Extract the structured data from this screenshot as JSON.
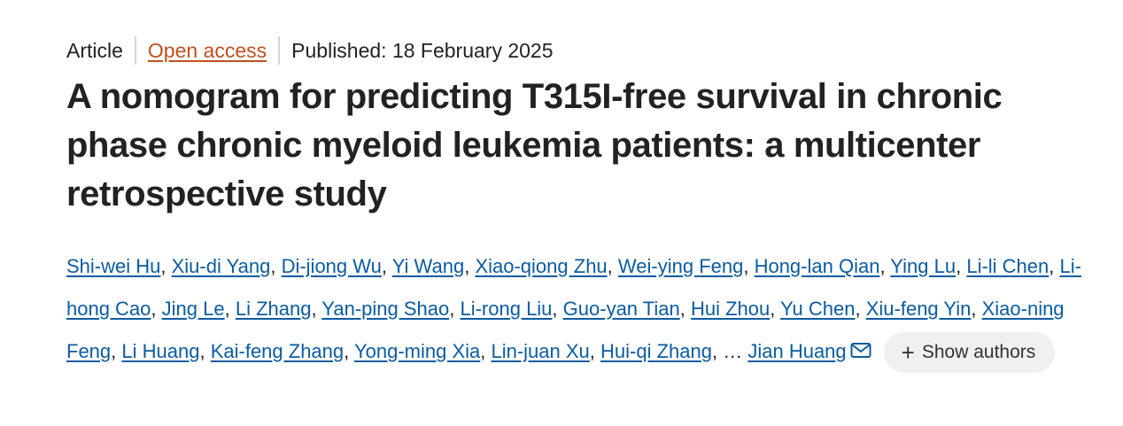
{
  "meta": {
    "type": "Article",
    "access": "Open access",
    "published": "Published: 18 February 2025"
  },
  "title": "A nomogram for predicting T315I-free survival in chronic phase chronic myeloid leukemia patients: a multicenter retrospective study",
  "authors": [
    "Shi-wei Hu",
    "Xiu-di Yang",
    "Di-jiong Wu",
    "Yi Wang",
    "Xiao-qiong Zhu",
    "Wei-ying Feng",
    "Hong-lan Qian",
    "Ying Lu",
    "Li-li Chen",
    "Li-hong Cao",
    "Jing Le",
    "Li Zhang",
    "Yan-ping Shao",
    "Li-rong Liu",
    "Guo-yan Tian",
    "Hui Zhou",
    "Yu Chen",
    "Xiu-feng Yin",
    "Xiao-ning Feng",
    "Li Huang",
    "Kai-feng Zhang",
    "Yong-ming Xia",
    "Lin-juan Xu",
    "Hui-qi Zhang"
  ],
  "ellipsis": "…",
  "corresponding_author": "Jian Huang",
  "show_authors_label": "Show authors",
  "icons": {
    "mail": "mail-icon",
    "plus": "plus-icon"
  },
  "colors": {
    "open_access": "#c0511d",
    "author_link": "#0b5ca0",
    "button_bg": "#eef0f2"
  }
}
